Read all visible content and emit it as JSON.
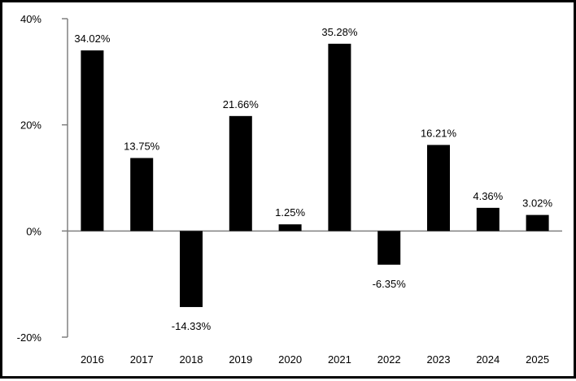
{
  "chart_data": {
    "type": "bar",
    "title": "",
    "xlabel": "",
    "ylabel": "",
    "categories": [
      "2016",
      "2017",
      "2018",
      "2019",
      "2020",
      "2021",
      "2022",
      "2023",
      "2024",
      "2025"
    ],
    "values": [
      34.02,
      13.75,
      -14.33,
      21.66,
      1.25,
      35.28,
      -6.35,
      16.21,
      4.36,
      3.02
    ],
    "data_labels": [
      "34.02%",
      "13.75%",
      "-14.33%",
      "21.66%",
      "1.25%",
      "35.28%",
      "-6.35%",
      "16.21%",
      "4.36%",
      "3.02%"
    ],
    "ylim": [
      -20,
      40
    ],
    "yticks": [
      40,
      20,
      0,
      -20
    ],
    "ytick_labels": [
      "40%",
      "20%",
      "0%",
      "-20%"
    ],
    "grid": false,
    "legend": "none",
    "colors": {
      "bar": "#000000",
      "axis": "#808080",
      "border": "#000000",
      "background": "#ffffff"
    }
  }
}
